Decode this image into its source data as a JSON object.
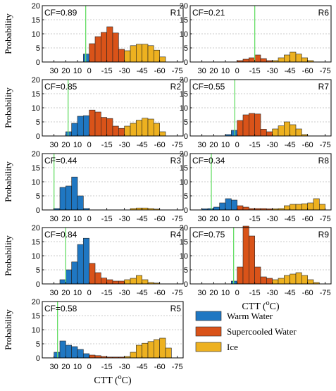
{
  "colors": {
    "warm": "#1f77c2",
    "super": "#d95319",
    "ice": "#edb120",
    "cf_line": "#66dd66",
    "grid": "#bbbbbb"
  },
  "legend": [
    {
      "key": "warm",
      "label": "Warm Water"
    },
    {
      "key": "super",
      "label": "Supercooled Water"
    },
    {
      "key": "ice",
      "label": "Ice"
    }
  ],
  "axis": {
    "ylabel": "Probability",
    "xlabel_main": "CTT (",
    "xlabel_sup": "o",
    "xlabel_tail": "C)"
  },
  "chart_data": [
    {
      "type": "bar",
      "region": "R1",
      "cf": "CF=0.89",
      "cf_ctt": 3,
      "x": [
        37.5,
        32.5,
        27.5,
        22.5,
        17.5,
        12.5,
        7.5,
        2.5,
        -2.5,
        -7.5,
        -12.5,
        -17.5,
        -22.5,
        -27.5,
        -32.5,
        -37.5,
        -42.5,
        -47.5,
        -52.5,
        -57.5,
        -62.5,
        -67.5,
        -72.5
      ],
      "values": [
        0,
        0,
        0,
        0,
        0,
        0,
        0,
        2.8,
        6.5,
        9,
        10.5,
        12.5,
        10.3,
        4.5,
        4,
        5.8,
        6.3,
        6.3,
        5.8,
        4.2,
        1.8,
        0,
        0
      ]
    },
    {
      "type": "bar",
      "region": "R6",
      "cf": "CF=0.21",
      "cf_ctt": -15,
      "x": [
        37.5,
        32.5,
        27.5,
        22.5,
        17.5,
        12.5,
        7.5,
        2.5,
        -2.5,
        -7.5,
        -12.5,
        -17.5,
        -22.5,
        -27.5,
        -32.5,
        -37.5,
        -42.5,
        -47.5,
        -52.5,
        -57.5,
        -62.5,
        -67.5,
        -72.5
      ],
      "values": [
        0,
        0,
        0,
        0,
        0,
        0,
        0,
        0,
        0.5,
        1,
        1.5,
        2.5,
        1.2,
        0.5,
        0.5,
        1.5,
        2.5,
        3.5,
        2.8,
        1.5,
        0.5,
        0,
        0
      ]
    },
    {
      "type": "bar",
      "region": "R2",
      "cf": "CF=0.85",
      "cf_ctt": 18,
      "x": [
        37.5,
        32.5,
        27.5,
        22.5,
        17.5,
        12.5,
        7.5,
        2.5,
        -2.5,
        -7.5,
        -12.5,
        -17.5,
        -22.5,
        -27.5,
        -32.5,
        -37.5,
        -42.5,
        -47.5,
        -52.5,
        -57.5,
        -62.5,
        -67.5,
        -72.5
      ],
      "values": [
        0,
        0,
        0,
        0,
        1.5,
        4.5,
        7,
        7.2,
        9.2,
        8.5,
        6.6,
        6.2,
        3.5,
        2.7,
        3.5,
        4.5,
        5.6,
        6.3,
        6,
        4.5,
        1.5,
        0,
        0
      ]
    },
    {
      "type": "bar",
      "region": "R7",
      "cf": "CF=0.55",
      "cf_ctt": 2,
      "x": [
        37.5,
        32.5,
        27.5,
        22.5,
        17.5,
        12.5,
        7.5,
        2.5,
        -2.5,
        -7.5,
        -12.5,
        -17.5,
        -22.5,
        -27.5,
        -32.5,
        -37.5,
        -42.5,
        -47.5,
        -52.5,
        -57.5,
        -62.5,
        -67.5,
        -72.5
      ],
      "values": [
        0,
        0,
        0,
        0,
        0,
        0,
        0.5,
        2,
        5.5,
        7.5,
        8,
        7.8,
        2.4,
        1.5,
        2.5,
        3.6,
        5,
        4,
        2.5,
        0.5,
        0,
        0,
        0
      ]
    },
    {
      "type": "bar",
      "region": "R3",
      "cf": "CF=0.44",
      "cf_ctt": 30,
      "x": [
        37.5,
        32.5,
        27.5,
        22.5,
        17.5,
        12.5,
        7.5,
        2.5,
        -2.5,
        -7.5,
        -12.5,
        -17.5,
        -22.5,
        -27.5,
        -32.5,
        -37.5,
        -42.5,
        -47.5,
        -52.5,
        -57.5,
        -62.5,
        -67.5,
        -72.5
      ],
      "values": [
        0,
        0,
        0.5,
        8,
        8.5,
        11.7,
        5,
        0.5,
        0,
        0,
        0,
        0,
        0,
        0,
        0,
        0.5,
        0.7,
        0.7,
        0.5,
        0.3,
        0,
        0,
        0
      ]
    },
    {
      "type": "bar",
      "region": "R8",
      "cf": "CF=0.34",
      "cf_ctt": 22,
      "x": [
        37.5,
        32.5,
        27.5,
        22.5,
        17.5,
        12.5,
        7.5,
        2.5,
        -2.5,
        -7.5,
        -12.5,
        -17.5,
        -22.5,
        -27.5,
        -32.5,
        -37.5,
        -42.5,
        -47.5,
        -52.5,
        -57.5,
        -62.5,
        -67.5,
        -72.5
      ],
      "values": [
        0,
        0,
        0.4,
        0.5,
        1,
        2.5,
        4,
        3.5,
        1.5,
        1,
        0.5,
        0.5,
        0.5,
        0.4,
        0.4,
        0.5,
        1.5,
        2,
        2,
        2.2,
        2.5,
        4,
        2
      ]
    },
    {
      "type": "bar",
      "region": "R4",
      "cf": "CF=0.84",
      "cf_ctt": 20,
      "x": [
        37.5,
        32.5,
        27.5,
        22.5,
        17.5,
        12.5,
        7.5,
        2.5,
        -2.5,
        -7.5,
        -12.5,
        -17.5,
        -22.5,
        -27.5,
        -32.5,
        -37.5,
        -42.5,
        -47.5,
        -52.5,
        -57.5,
        -62.5,
        -67.5,
        -72.5
      ],
      "values": [
        0,
        0,
        0,
        1.5,
        5,
        7.8,
        14,
        16.2,
        7.3,
        4,
        2.1,
        1.5,
        1,
        1,
        1.5,
        2,
        3,
        1.5,
        0.5,
        0.3,
        0,
        0,
        0
      ]
    },
    {
      "type": "bar",
      "region": "R9",
      "cf": "CF=0.75",
      "cf_ctt": 3,
      "x": [
        37.5,
        32.5,
        27.5,
        22.5,
        17.5,
        12.5,
        7.5,
        2.5,
        -2.5,
        -7.5,
        -12.5,
        -17.5,
        -22.5,
        -27.5,
        -32.5,
        -37.5,
        -42.5,
        -47.5,
        -52.5,
        -57.5,
        -62.5,
        -67.5,
        -72.5
      ],
      "values": [
        0,
        0,
        0,
        0,
        0,
        0,
        0,
        1,
        6,
        20.5,
        17,
        6,
        2.5,
        2,
        1.5,
        2,
        3,
        3.5,
        4,
        3,
        1.5,
        0.5,
        0
      ]
    },
    {
      "type": "bar",
      "region": "R5",
      "cf": "CF=0.58",
      "cf_ctt": 27,
      "x": [
        37.5,
        32.5,
        27.5,
        22.5,
        17.5,
        12.5,
        7.5,
        2.5,
        -2.5,
        -7.5,
        -12.5,
        -17.5,
        -22.5,
        -27.5,
        -32.5,
        -37.5,
        -42.5,
        -47.5,
        -52.5,
        -57.5,
        -62.5,
        -67.5,
        -72.5
      ],
      "values": [
        0,
        0,
        2,
        6,
        4.5,
        4,
        3,
        1.5,
        1,
        0.8,
        0.5,
        0.3,
        0.3,
        0.3,
        0.5,
        2,
        4.5,
        5.2,
        5.8,
        6.5,
        7,
        3.5,
        0
      ]
    }
  ],
  "ylim": [
    0,
    20
  ],
  "xlim": [
    40,
    -80
  ],
  "yticks": [
    0,
    5,
    10,
    15,
    20
  ],
  "xticks": [
    {
      "v": 30,
      "label": "30"
    },
    {
      "v": 20,
      "label": "20"
    },
    {
      "v": 10,
      "label": "10"
    },
    {
      "v": 0,
      "label": "0"
    },
    {
      "v": -15,
      "label": "-15"
    },
    {
      "v": -30,
      "label": "-30"
    },
    {
      "v": -45,
      "label": "-45"
    },
    {
      "v": -60,
      "label": "-60"
    },
    {
      "v": -75,
      "label": "-75"
    }
  ]
}
